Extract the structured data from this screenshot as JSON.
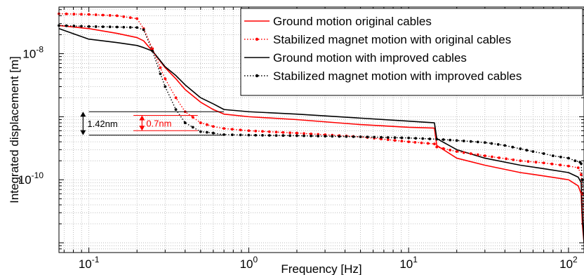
{
  "chart_data": {
    "type": "line",
    "xlabel": "Frequency [Hz]",
    "ylabel": "Integrated displacement [m]",
    "x_scale": "log",
    "y_scale": "log",
    "xlim": [
      0.065,
      125
    ],
    "ylim": [
      7e-12,
      5.5e-08
    ],
    "grid": true,
    "legend_position": "top-right",
    "x_ticks": [
      {
        "value": 0.1,
        "base": "10",
        "exp": "-1"
      },
      {
        "value": 1,
        "base": "10",
        "exp": "0"
      },
      {
        "value": 10,
        "base": "10",
        "exp": "1"
      },
      {
        "value": 100,
        "base": "10",
        "exp": "2"
      }
    ],
    "y_ticks": [
      {
        "value": 1e-08,
        "base": "10",
        "exp": "-8"
      },
      {
        "value": 1e-10,
        "base": "10",
        "exp": "-10"
      }
    ],
    "series": [
      {
        "name": "Ground motion original cables",
        "color": "#ff0000",
        "line_style": "solid",
        "marker": "none",
        "x": [
          0.065,
          0.1,
          0.15,
          0.2,
          0.22,
          0.25,
          0.3,
          0.35,
          0.4,
          0.5,
          0.6,
          0.7,
          1,
          2,
          5,
          10,
          14.5,
          15,
          20,
          30,
          50,
          70,
          100,
          115,
          120,
          122,
          125
        ],
        "y": [
          2.8e-08,
          2.5e-08,
          2.1e-08,
          1.8e-08,
          1.6e-08,
          1.1e-08,
          6e-09,
          4e-09,
          2.7e-09,
          1.7e-09,
          1.3e-09,
          1.1e-09,
          1e-09,
          9e-10,
          7.5e-10,
          6.8e-10,
          6.6e-10,
          3.5e-10,
          2.2e-10,
          1.7e-10,
          1.3e-10,
          1.15e-10,
          1e-10,
          8e-11,
          6e-11,
          2e-11,
          1e-11
        ]
      },
      {
        "name": "Stabilized magnet motion with original cables",
        "color": "#ff0000",
        "line_style": "dotted",
        "marker": "dot",
        "x": [
          0.065,
          0.1,
          0.15,
          0.2,
          0.22,
          0.25,
          0.28,
          0.3,
          0.35,
          0.4,
          0.5,
          0.6,
          0.7,
          1,
          2,
          5,
          10,
          14.5,
          15,
          20,
          30,
          50,
          70,
          100,
          115,
          120,
          122,
          125
        ],
        "y": [
          4.3e-08,
          4.2e-08,
          4e-08,
          3.6e-08,
          2.5e-08,
          1.2e-08,
          6e-09,
          4e-09,
          2e-09,
          1.2e-09,
          8e-10,
          7e-10,
          6.5e-10,
          6e-10,
          5.5e-10,
          4.8e-10,
          4e-10,
          3.7e-10,
          3.3e-10,
          2.8e-10,
          2.4e-10,
          2e-10,
          1.85e-10,
          1.65e-10,
          1.55e-10,
          1.2e-10,
          6e-11,
          2e-11
        ]
      },
      {
        "name": "Ground motion with improved cables",
        "color": "#000000",
        "line_style": "solid",
        "marker": "none",
        "x": [
          0.065,
          0.1,
          0.15,
          0.2,
          0.22,
          0.25,
          0.3,
          0.35,
          0.4,
          0.5,
          0.6,
          0.7,
          1,
          2,
          5,
          10,
          14.5,
          15,
          20,
          30,
          50,
          70,
          100,
          115,
          120,
          122,
          125
        ],
        "y": [
          2.5e-08,
          1.7e-08,
          1.5e-08,
          1.35e-08,
          1.25e-08,
          1.1e-08,
          6.2e-09,
          4.5e-09,
          3.2e-09,
          2e-09,
          1.6e-09,
          1.3e-09,
          1.2e-09,
          1.1e-09,
          9.5e-10,
          8.5e-10,
          8e-10,
          4.5e-10,
          3e-10,
          2.2e-10,
          1.7e-10,
          1.5e-10,
          1.3e-10,
          1.1e-10,
          9e-11,
          3e-11,
          1e-11
        ]
      },
      {
        "name": "Stabilized magnet motion with improved cables",
        "color": "#000000",
        "line_style": "dotted",
        "marker": "dot",
        "x": [
          0.065,
          0.1,
          0.15,
          0.2,
          0.22,
          0.25,
          0.28,
          0.3,
          0.35,
          0.4,
          0.5,
          0.6,
          0.7,
          1,
          2,
          5,
          10,
          15,
          20,
          30,
          40,
          50,
          60,
          70,
          80,
          100,
          110,
          118,
          120,
          122,
          125
        ],
        "y": [
          2.8e-08,
          2.7e-08,
          2.65e-08,
          2.6e-08,
          2.4e-08,
          1.1e-08,
          4.8e-09,
          3e-09,
          1.3e-09,
          8e-10,
          5.8e-10,
          5.5e-10,
          5.2e-10,
          5.1e-10,
          5e-10,
          4.8e-10,
          4.6e-10,
          4.4e-10,
          4.2e-10,
          3.9e-10,
          3.5e-10,
          3.1e-10,
          2.8e-10,
          2.6e-10,
          2.4e-10,
          2.2e-10,
          2e-10,
          1.9e-10,
          1.8e-10,
          1e-10,
          3e-11
        ]
      }
    ],
    "annotations": [
      {
        "text": "1.42nm",
        "color": "#000000",
        "y_top": 1.2e-09,
        "y_bottom": 5.1e-10,
        "x_line_start": 0.1,
        "x_line_end": 0.7,
        "x_arrow": 0.092
      },
      {
        "text": "0.7nm",
        "color": "#ff0000",
        "y_top": 1.05e-09,
        "y_bottom": 6e-10,
        "x_line_start": 0.19,
        "x_line_end": 0.48,
        "x_arrow": 0.215
      }
    ]
  }
}
